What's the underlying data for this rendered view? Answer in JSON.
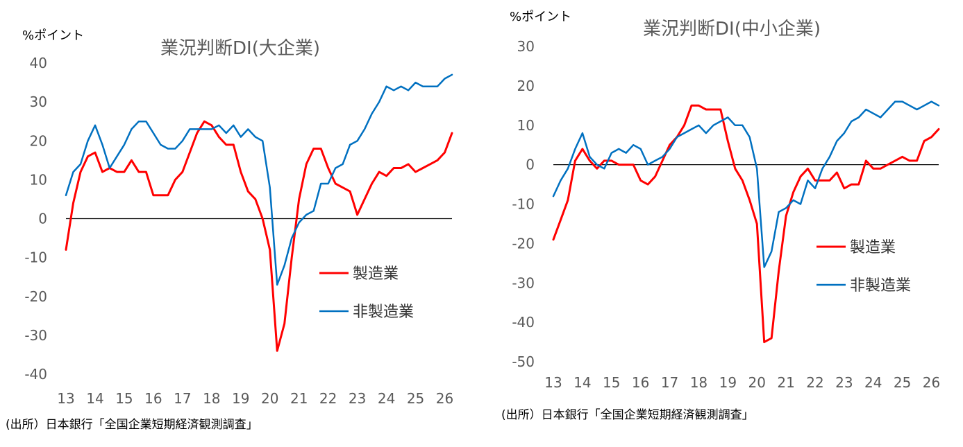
{
  "chart_data": [
    {
      "type": "line",
      "title": "業況判断DI(大企業)",
      "unit_label": "%ポイント",
      "ylim": [
        -40,
        40
      ],
      "yticks": [
        -40,
        -30,
        -20,
        -10,
        0,
        10,
        20,
        30,
        40
      ],
      "xlim": [
        13,
        26.25
      ],
      "xticks": [
        13,
        14,
        15,
        16,
        17,
        18,
        19,
        20,
        21,
        22,
        23,
        24,
        25,
        26
      ],
      "zero_line": true,
      "legend_position": "right-middle",
      "series": [
        {
          "name": "製造業",
          "color": "#FF0000",
          "x": [
            13,
            13.25,
            13.5,
            13.75,
            14,
            14.25,
            14.5,
            14.75,
            15,
            15.25,
            15.5,
            15.75,
            16,
            16.25,
            16.5,
            16.75,
            17,
            17.25,
            17.5,
            17.75,
            18,
            18.25,
            18.5,
            18.75,
            19,
            19.25,
            19.5,
            19.75,
            20,
            20.25,
            20.5,
            20.75,
            21,
            21.25,
            21.5,
            21.75,
            22,
            22.25,
            22.5,
            22.75,
            23,
            23.25,
            23.5,
            23.75,
            24,
            24.25,
            24.5,
            24.75,
            25,
            25.25,
            25.5,
            25.75,
            26,
            26.25
          ],
          "values": [
            -8,
            4,
            12,
            16,
            17,
            12,
            13,
            12,
            12,
            15,
            12,
            12,
            6,
            6,
            6,
            10,
            12,
            17,
            22,
            25,
            24,
            21,
            19,
            19,
            12,
            7,
            5,
            0,
            -8,
            -34,
            -27,
            -10,
            5,
            14,
            18,
            18,
            13,
            9,
            8,
            7,
            1,
            5,
            9,
            12,
            11,
            13,
            13,
            14,
            12,
            13,
            14,
            15,
            17,
            22
          ]
        },
        {
          "name": "非製造業",
          "color": "#0070C0",
          "x": [
            13,
            13.25,
            13.5,
            13.75,
            14,
            14.25,
            14.5,
            14.75,
            15,
            15.25,
            15.5,
            15.75,
            16,
            16.25,
            16.5,
            16.75,
            17,
            17.25,
            17.5,
            17.75,
            18,
            18.25,
            18.5,
            18.75,
            19,
            19.25,
            19.5,
            19.75,
            20,
            20.25,
            20.5,
            20.75,
            21,
            21.25,
            21.5,
            21.75,
            22,
            22.25,
            22.5,
            22.75,
            23,
            23.25,
            23.5,
            23.75,
            24,
            24.25,
            24.5,
            24.75,
            25,
            25.25,
            25.5,
            25.75,
            26,
            26.25
          ],
          "values": [
            6,
            12,
            14,
            20,
            24,
            19,
            13,
            16,
            19,
            23,
            25,
            25,
            22,
            19,
            18,
            18,
            20,
            23,
            23,
            23,
            23,
            24,
            22,
            24,
            21,
            23,
            21,
            20,
            8,
            -17,
            -12,
            -5,
            -1,
            1,
            2,
            9,
            9,
            13,
            14,
            19,
            20,
            23,
            27,
            30,
            34,
            33,
            34,
            33,
            35,
            34,
            34,
            34,
            36,
            37
          ]
        }
      ]
    },
    {
      "type": "line",
      "title": "業況判断DI(中小企業)",
      "unit_label": "%ポイント",
      "ylim": [
        -50,
        30
      ],
      "yticks": [
        -50,
        -40,
        -30,
        -20,
        -10,
        0,
        10,
        20,
        30
      ],
      "xlim": [
        13,
        26.25
      ],
      "xticks": [
        13,
        14,
        15,
        16,
        17,
        18,
        19,
        20,
        21,
        22,
        23,
        24,
        25,
        26
      ],
      "zero_line": true,
      "legend_position": "right-middle",
      "series": [
        {
          "name": "製造業",
          "color": "#FF0000",
          "x": [
            13,
            13.25,
            13.5,
            13.75,
            14,
            14.25,
            14.5,
            14.75,
            15,
            15.25,
            15.5,
            15.75,
            16,
            16.25,
            16.5,
            16.75,
            17,
            17.25,
            17.5,
            17.75,
            18,
            18.25,
            18.5,
            18.75,
            19,
            19.25,
            19.5,
            19.75,
            20,
            20.25,
            20.5,
            20.75,
            21,
            21.25,
            21.5,
            21.75,
            22,
            22.25,
            22.5,
            22.75,
            23,
            23.25,
            23.5,
            23.75,
            24,
            24.25,
            24.5,
            24.75,
            25,
            25.25,
            25.5,
            25.75,
            26,
            26.25
          ],
          "values": [
            -19,
            -14,
            -9,
            1,
            4,
            1,
            -1,
            1,
            1,
            0,
            0,
            0,
            -4,
            -5,
            -3,
            1,
            5,
            7,
            10,
            15,
            15,
            14,
            14,
            14,
            6,
            -1,
            -4,
            -9,
            -15,
            -45,
            -44,
            -27,
            -13,
            -7,
            -3,
            -1,
            -4,
            -4,
            -4,
            -2,
            -6,
            -5,
            -5,
            1,
            -1,
            -1,
            0,
            1,
            2,
            1,
            1,
            6,
            7,
            9
          ]
        },
        {
          "name": "非製造業",
          "color": "#0070C0",
          "x": [
            13,
            13.25,
            13.5,
            13.75,
            14,
            14.25,
            14.5,
            14.75,
            15,
            15.25,
            15.5,
            15.75,
            16,
            16.25,
            16.5,
            16.75,
            17,
            17.25,
            17.5,
            17.75,
            18,
            18.25,
            18.5,
            18.75,
            19,
            19.25,
            19.5,
            19.75,
            20,
            20.25,
            20.5,
            20.75,
            21,
            21.25,
            21.5,
            21.75,
            22,
            22.25,
            22.5,
            22.75,
            23,
            23.25,
            23.5,
            23.75,
            24,
            24.25,
            24.5,
            24.75,
            25,
            25.25,
            25.5,
            25.75,
            26,
            26.25
          ],
          "values": [
            -8,
            -4,
            -1,
            4,
            8,
            2,
            0,
            -1,
            3,
            4,
            3,
            5,
            4,
            0,
            1,
            2,
            4,
            7,
            8,
            9,
            10,
            8,
            10,
            11,
            12,
            10,
            10,
            7,
            -1,
            -26,
            -22,
            -12,
            -11,
            -9,
            -10,
            -4,
            -6,
            -1,
            2,
            6,
            8,
            11,
            12,
            14,
            13,
            12,
            14,
            16,
            16,
            15,
            14,
            15,
            16,
            15
          ]
        }
      ]
    }
  ],
  "source_note": "(出所）日本銀行「全国企業短期経済観測調査」"
}
